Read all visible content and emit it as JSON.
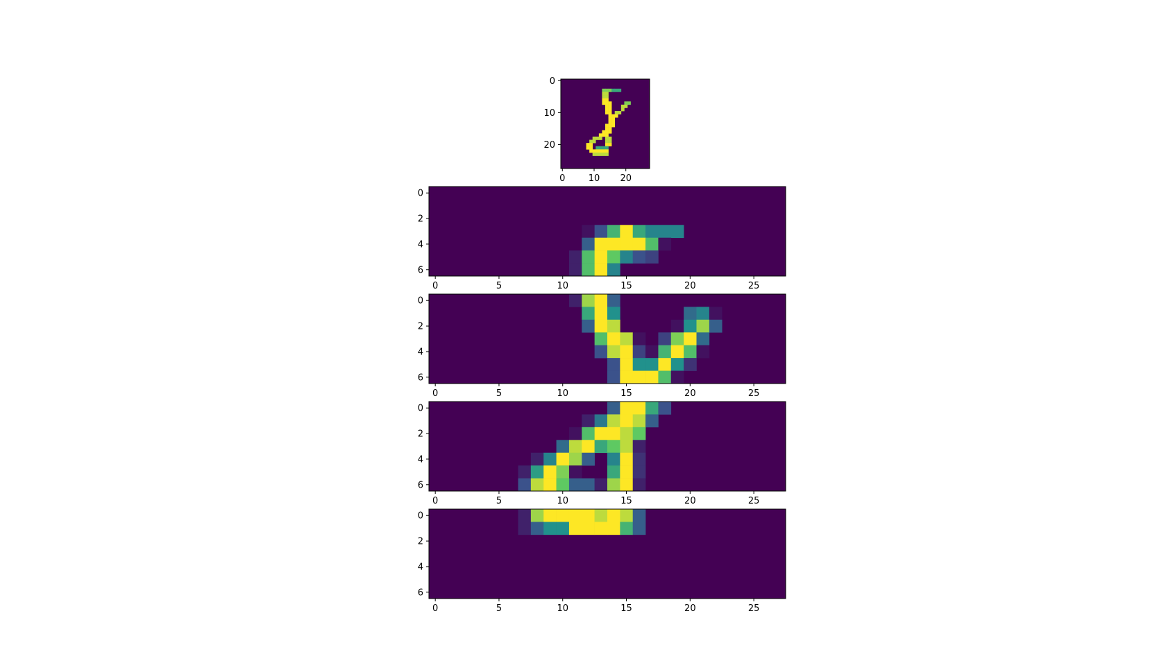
{
  "figure": {
    "background": "#ffffff",
    "colormap": "viridis",
    "colormap_stops": [
      "#440154",
      "#3b528b",
      "#21918c",
      "#5ec962",
      "#fde725"
    ]
  },
  "chart_data": [
    {
      "type": "heatmap",
      "title": "",
      "xlabel": "",
      "ylabel": "",
      "xlim": [
        -0.5,
        27.5
      ],
      "ylim": [
        27.5,
        -0.5
      ],
      "xticks": [
        0,
        10,
        20
      ],
      "yticks": [
        0,
        10,
        20
      ],
      "resolution": 28,
      "value_range": [
        0,
        1
      ],
      "rows": [
        {
          "row": 3,
          "segments": [
            [
              13,
              15,
              0.8
            ],
            [
              16,
              18,
              0.6
            ]
          ]
        },
        {
          "row": 4,
          "segments": [
            [
              13,
              14,
              0.9
            ]
          ]
        },
        {
          "row": 5,
          "segments": [
            [
              13,
              14,
              0.9
            ]
          ]
        },
        {
          "row": 6,
          "segments": [
            [
              13,
              14,
              1.0
            ]
          ]
        },
        {
          "row": 7,
          "segments": [
            [
              13,
              15,
              1.0
            ],
            [
              20,
              21,
              0.8
            ]
          ]
        },
        {
          "row": 8,
          "segments": [
            [
              14,
              15,
              1.0
            ],
            [
              19,
              20,
              0.9
            ]
          ]
        },
        {
          "row": 9,
          "segments": [
            [
              14,
              15,
              1.0
            ],
            [
              19,
              19,
              0.9
            ]
          ]
        },
        {
          "row": 10,
          "segments": [
            [
              14,
              15,
              1.0
            ],
            [
              17,
              18,
              0.9
            ]
          ]
        },
        {
          "row": 11,
          "segments": [
            [
              15,
              17,
              1.0
            ]
          ]
        },
        {
          "row": 12,
          "segments": [
            [
              15,
              16,
              1.0
            ]
          ]
        },
        {
          "row": 13,
          "segments": [
            [
              15,
              16,
              1.0
            ]
          ]
        },
        {
          "row": 14,
          "segments": [
            [
              14,
              16,
              1.0
            ]
          ]
        },
        {
          "row": 15,
          "segments": [
            [
              14,
              15,
              1.0
            ]
          ]
        },
        {
          "row": 16,
          "segments": [
            [
              13,
              15,
              1.0
            ]
          ]
        },
        {
          "row": 17,
          "segments": [
            [
              12,
              14,
              1.0
            ]
          ]
        },
        {
          "row": 18,
          "segments": [
            [
              10,
              12,
              0.9
            ],
            [
              14,
              15,
              0.9
            ]
          ]
        },
        {
          "row": 19,
          "segments": [
            [
              9,
              10,
              0.9
            ],
            [
              14,
              15,
              0.9
            ]
          ]
        },
        {
          "row": 20,
          "segments": [
            [
              8,
              9,
              1.0
            ],
            [
              14,
              15,
              1.0
            ]
          ]
        },
        {
          "row": 21,
          "segments": [
            [
              8,
              9,
              1.0
            ],
            [
              11,
              14,
              0.6
            ]
          ]
        },
        {
          "row": 22,
          "segments": [
            [
              9,
              14,
              1.0
            ]
          ]
        },
        {
          "row": 23,
          "segments": [
            [
              10,
              14,
              0.9
            ]
          ]
        }
      ]
    },
    {
      "type": "heatmap",
      "title": "",
      "xlim": [
        -0.5,
        27.5
      ],
      "ylim": [
        6.5,
        -0.5
      ],
      "xticks": [
        0,
        5,
        10,
        15,
        20,
        25
      ],
      "yticks": [
        0,
        2,
        4,
        6
      ],
      "value_range": [
        0,
        1
      ],
      "cells": [
        [
          3,
          12,
          0.05
        ],
        [
          3,
          13,
          0.25
        ],
        [
          3,
          14,
          0.65
        ],
        [
          3,
          15,
          1.0
        ],
        [
          3,
          16,
          0.6
        ],
        [
          3,
          17,
          0.45
        ],
        [
          3,
          18,
          0.45
        ],
        [
          3,
          19,
          0.45
        ],
        [
          4,
          12,
          0.3
        ],
        [
          4,
          13,
          1.0
        ],
        [
          4,
          14,
          1.0
        ],
        [
          4,
          15,
          1.0
        ],
        [
          4,
          16,
          1.0
        ],
        [
          4,
          17,
          0.7
        ],
        [
          4,
          18,
          0.05
        ],
        [
          5,
          11,
          0.1
        ],
        [
          5,
          12,
          0.7
        ],
        [
          5,
          13,
          1.0
        ],
        [
          5,
          14,
          0.75
        ],
        [
          5,
          15,
          0.45
        ],
        [
          5,
          16,
          0.25
        ],
        [
          5,
          17,
          0.2
        ],
        [
          6,
          11,
          0.1
        ],
        [
          6,
          12,
          0.7
        ],
        [
          6,
          13,
          1.0
        ],
        [
          6,
          14,
          0.45
        ]
      ]
    },
    {
      "type": "heatmap",
      "title": "",
      "xlim": [
        -0.5,
        27.5
      ],
      "ylim": [
        6.5,
        -0.5
      ],
      "xticks": [
        0,
        5,
        10,
        15,
        20,
        25
      ],
      "yticks": [
        0,
        2,
        4,
        6
      ],
      "value_range": [
        0,
        1
      ],
      "cells": [
        [
          0,
          11,
          0.1
        ],
        [
          0,
          12,
          0.85
        ],
        [
          0,
          13,
          1.0
        ],
        [
          0,
          14,
          0.3
        ],
        [
          1,
          12,
          0.6
        ],
        [
          1,
          13,
          1.0
        ],
        [
          1,
          14,
          0.5
        ],
        [
          1,
          20,
          0.35
        ],
        [
          1,
          21,
          0.45
        ],
        [
          1,
          22,
          0.05
        ],
        [
          2,
          12,
          0.3
        ],
        [
          2,
          13,
          1.0
        ],
        [
          2,
          14,
          0.9
        ],
        [
          2,
          19,
          0.05
        ],
        [
          2,
          20,
          0.5
        ],
        [
          2,
          21,
          0.85
        ],
        [
          2,
          22,
          0.3
        ],
        [
          3,
          13,
          0.7
        ],
        [
          3,
          14,
          1.0
        ],
        [
          3,
          15,
          0.9
        ],
        [
          3,
          16,
          0.05
        ],
        [
          3,
          18,
          0.2
        ],
        [
          3,
          19,
          0.8
        ],
        [
          3,
          20,
          1.0
        ],
        [
          3,
          21,
          0.35
        ],
        [
          4,
          13,
          0.25
        ],
        [
          4,
          14,
          0.9
        ],
        [
          4,
          15,
          1.0
        ],
        [
          4,
          16,
          0.2
        ],
        [
          4,
          17,
          0.05
        ],
        [
          4,
          18,
          0.65
        ],
        [
          4,
          19,
          1.0
        ],
        [
          4,
          20,
          0.7
        ],
        [
          4,
          21,
          0.05
        ],
        [
          5,
          14,
          0.25
        ],
        [
          5,
          15,
          1.0
        ],
        [
          5,
          16,
          0.5
        ],
        [
          5,
          17,
          0.5
        ],
        [
          5,
          18,
          1.0
        ],
        [
          5,
          19,
          0.5
        ],
        [
          5,
          20,
          0.15
        ],
        [
          6,
          14,
          0.25
        ],
        [
          6,
          15,
          1.0
        ],
        [
          6,
          16,
          1.0
        ],
        [
          6,
          17,
          1.0
        ],
        [
          6,
          18,
          0.7
        ],
        [
          6,
          19,
          0.05
        ]
      ]
    },
    {
      "type": "heatmap",
      "title": "",
      "xlim": [
        -0.5,
        27.5
      ],
      "ylim": [
        6.5,
        -0.5
      ],
      "xticks": [
        0,
        5,
        10,
        15,
        20,
        25
      ],
      "yticks": [
        0,
        2,
        4,
        6
      ],
      "value_range": [
        0,
        1
      ],
      "cells": [
        [
          0,
          14,
          0.3
        ],
        [
          0,
          15,
          1.0
        ],
        [
          0,
          16,
          1.0
        ],
        [
          0,
          17,
          0.6
        ],
        [
          0,
          18,
          0.25
        ],
        [
          1,
          12,
          0.1
        ],
        [
          1,
          13,
          0.4
        ],
        [
          1,
          14,
          0.9
        ],
        [
          1,
          15,
          1.0
        ],
        [
          1,
          16,
          0.9
        ],
        [
          1,
          17,
          0.3
        ],
        [
          2,
          11,
          0.05
        ],
        [
          2,
          12,
          0.7
        ],
        [
          2,
          13,
          1.0
        ],
        [
          2,
          14,
          1.0
        ],
        [
          2,
          15,
          0.9
        ],
        [
          2,
          16,
          0.75
        ],
        [
          3,
          10,
          0.35
        ],
        [
          3,
          11,
          0.9
        ],
        [
          3,
          12,
          1.0
        ],
        [
          3,
          13,
          0.6
        ],
        [
          3,
          14,
          0.75
        ],
        [
          3,
          15,
          0.9
        ],
        [
          3,
          16,
          0.1
        ],
        [
          4,
          8,
          0.1
        ],
        [
          4,
          9,
          0.45
        ],
        [
          4,
          10,
          1.0
        ],
        [
          4,
          11,
          0.85
        ],
        [
          4,
          12,
          0.3
        ],
        [
          4,
          14,
          0.45
        ],
        [
          4,
          15,
          1.0
        ],
        [
          4,
          16,
          0.15
        ],
        [
          5,
          7,
          0.1
        ],
        [
          5,
          8,
          0.55
        ],
        [
          5,
          9,
          1.0
        ],
        [
          5,
          10,
          0.8
        ],
        [
          5,
          11,
          0.05
        ],
        [
          5,
          14,
          0.6
        ],
        [
          5,
          15,
          1.0
        ],
        [
          5,
          16,
          0.15
        ],
        [
          6,
          7,
          0.25
        ],
        [
          6,
          8,
          0.9
        ],
        [
          6,
          9,
          1.0
        ],
        [
          6,
          10,
          0.75
        ],
        [
          6,
          11,
          0.3
        ],
        [
          6,
          12,
          0.3
        ],
        [
          6,
          13,
          0.1
        ],
        [
          6,
          14,
          0.85
        ],
        [
          6,
          15,
          1.0
        ],
        [
          6,
          16,
          0.1
        ]
      ]
    },
    {
      "type": "heatmap",
      "title": "",
      "xlim": [
        -0.5,
        27.5
      ],
      "ylim": [
        6.5,
        -0.5
      ],
      "xticks": [
        0,
        5,
        10,
        15,
        20,
        25
      ],
      "yticks": [
        0,
        2,
        4,
        6
      ],
      "value_range": [
        0,
        1
      ],
      "cells": [
        [
          0,
          7,
          0.1
        ],
        [
          0,
          8,
          0.85
        ],
        [
          0,
          9,
          1.0
        ],
        [
          0,
          10,
          1.0
        ],
        [
          0,
          11,
          1.0
        ],
        [
          0,
          12,
          1.0
        ],
        [
          0,
          13,
          0.9
        ],
        [
          0,
          14,
          1.0
        ],
        [
          0,
          15,
          0.9
        ],
        [
          0,
          16,
          0.3
        ],
        [
          1,
          7,
          0.1
        ],
        [
          1,
          8,
          0.3
        ],
        [
          1,
          9,
          0.5
        ],
        [
          1,
          10,
          0.5
        ],
        [
          1,
          11,
          1.0
        ],
        [
          1,
          12,
          1.0
        ],
        [
          1,
          13,
          1.0
        ],
        [
          1,
          14,
          1.0
        ],
        [
          1,
          15,
          0.65
        ],
        [
          1,
          16,
          0.3
        ]
      ]
    }
  ]
}
